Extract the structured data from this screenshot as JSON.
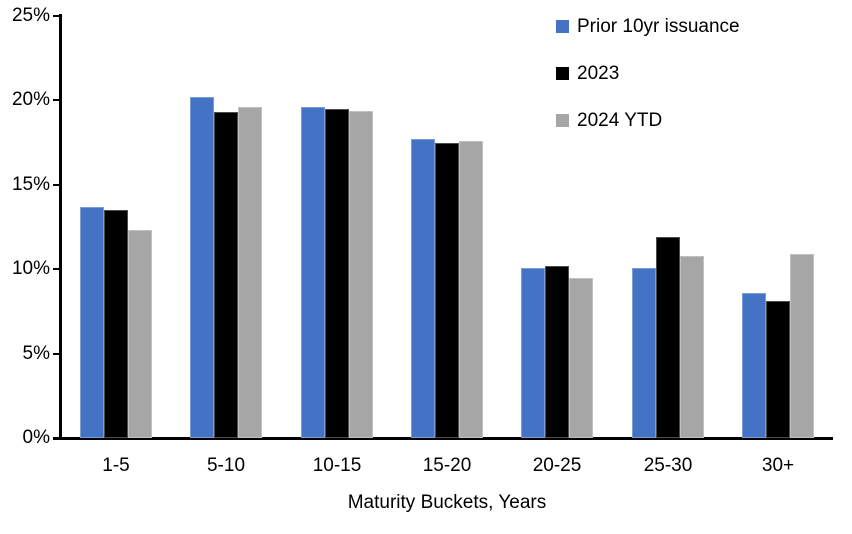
{
  "chart_data": {
    "type": "bar",
    "categories": [
      "1-5",
      "5-10",
      "10-15",
      "15-20",
      "20-25",
      "25-30",
      "30+"
    ],
    "series": [
      {
        "name": "Prior 10yr issuance",
        "color": "#4472C4",
        "values": [
          13.7,
          20.2,
          19.6,
          17.7,
          10.1,
          10.1,
          8.6
        ]
      },
      {
        "name": "2023",
        "color": "#000000",
        "values": [
          13.5,
          19.3,
          19.5,
          17.5,
          10.2,
          11.9,
          8.1
        ]
      },
      {
        "name": "2024 YTD",
        "color": "#A6A6A6",
        "values": [
          12.3,
          19.6,
          19.4,
          17.6,
          9.5,
          10.8,
          10.9
        ]
      }
    ],
    "title": "",
    "xlabel": "Maturity Buckets, Years",
    "ylabel": "",
    "ylim": [
      0,
      25
    ],
    "ytick_step": 5,
    "ytick_labels": [
      "0%",
      "5%",
      "10%",
      "15%",
      "20%",
      "25%"
    ],
    "grid": false,
    "legend_position": "top-right",
    "axis_color": "#000000",
    "background_color": "#FFFFFF"
  }
}
